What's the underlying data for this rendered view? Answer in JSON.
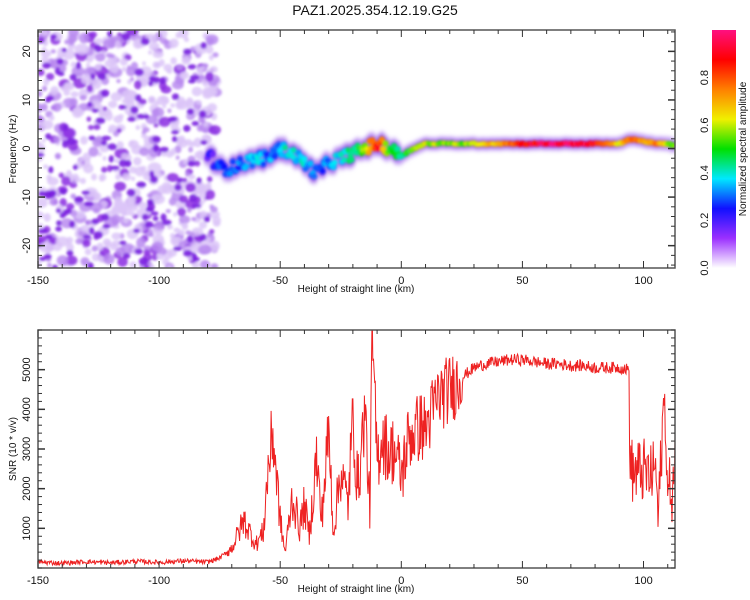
{
  "title": "PAZ1.2025.354.12.19.G25",
  "chart_data": [
    {
      "type": "heatmap",
      "title": "PAZ1.2025.354.12.19.G25",
      "xlabel": "Height of straight line (km)",
      "ylabel": "Frequency (Hz)",
      "xlim": [
        -150,
        113
      ],
      "ylim": [
        -24.6,
        24.4
      ],
      "xticks": [
        -150,
        -100,
        -50,
        0,
        50,
        100
      ],
      "xtick_labels": [
        "-150",
        "-100",
        "-50",
        "0",
        "50",
        "100"
      ],
      "yticks": [
        -20,
        -10,
        0,
        10,
        20
      ],
      "ytick_labels": [
        "-20",
        "-10",
        "0",
        "10",
        "20"
      ],
      "colorbar": {
        "label": "Normalized spectral amplitude",
        "range": [
          0,
          1
        ],
        "ticks": [
          0.0,
          0.2,
          0.4,
          0.6,
          0.8
        ],
        "tick_labels": [
          "0.0",
          "0.2",
          "0.4",
          "0.6",
          "0.8"
        ],
        "colormap": [
          "#ffffff",
          "#9b30ff",
          "#1010ff",
          "#00e8ff",
          "#00e000",
          "#f0f000",
          "#ff8000",
          "#ff0000",
          "#ff1080"
        ]
      },
      "signal_ridge": {
        "x": [
          -80,
          -75,
          -70,
          -65,
          -60,
          -55,
          -50,
          -45,
          -40,
          -35,
          -30,
          -25,
          -20,
          -15,
          -10,
          -5,
          0,
          5,
          10,
          20,
          30,
          40,
          50,
          60,
          70,
          80,
          90,
          95,
          100,
          105,
          110,
          113
        ],
        "y": [
          -1,
          -4,
          -4,
          -3,
          -2,
          -2,
          0,
          -1,
          -3,
          -5,
          -3,
          -2,
          -1,
          0,
          1,
          0,
          -1.5,
          0,
          1,
          1,
          1,
          1,
          1,
          1,
          1,
          1,
          1,
          2,
          1.5,
          1,
          1,
          0.5
        ],
        "amplitude": [
          0.2,
          0.25,
          0.3,
          0.3,
          0.35,
          0.3,
          0.35,
          0.4,
          0.35,
          0.3,
          0.3,
          0.4,
          0.45,
          0.55,
          0.9,
          0.5,
          0.45,
          0.55,
          0.6,
          0.55,
          0.6,
          0.7,
          0.85,
          0.95,
          0.95,
          0.9,
          0.6,
          0.8,
          0.7,
          0.75,
          0.6,
          0.5
        ]
      },
      "noise_region_x": [
        -150,
        -80
      ]
    },
    {
      "type": "line",
      "xlabel": "Height of straight line (km)",
      "ylabel": "SNR (10 * v/v)",
      "xlim": [
        -150,
        113
      ],
      "ylim": [
        0,
        6000
      ],
      "xticks": [
        -150,
        -100,
        -50,
        0,
        50,
        100
      ],
      "xtick_labels": [
        "-150",
        "-100",
        "-50",
        "0",
        "50",
        "100"
      ],
      "yticks": [
        1000,
        2000,
        3000,
        4000,
        5000
      ],
      "ytick_labels": [
        "1000",
        "2000",
        "3000",
        "4000",
        "5000"
      ],
      "color": "#ee2222",
      "series": [
        {
          "name": "SNR",
          "x": [
            -150,
            -140,
            -130,
            -120,
            -110,
            -100,
            -90,
            -80,
            -75,
            -70,
            -65,
            -60,
            -57,
            -55,
            -53,
            -50,
            -48,
            -45,
            -42,
            -40,
            -38,
            -35,
            -33,
            -30,
            -28,
            -25,
            -22,
            -20,
            -18,
            -15,
            -13,
            -12,
            -10,
            -8,
            -5,
            -3,
            0,
            3,
            5,
            8,
            10,
            15,
            20,
            25,
            30,
            35,
            40,
            45,
            50,
            55,
            60,
            65,
            70,
            75,
            80,
            85,
            90,
            94,
            94.5,
            96,
            100,
            103,
            105,
            106,
            107,
            108,
            109,
            110,
            111,
            112,
            113
          ],
          "y": [
            150,
            120,
            160,
            130,
            170,
            140,
            180,
            150,
            250,
            500,
            1200,
            600,
            900,
            2500,
            3400,
            1200,
            400,
            1800,
            1000,
            1600,
            800,
            2800,
            1200,
            3400,
            900,
            2500,
            1600,
            3800,
            2000,
            4000,
            1500,
            5800,
            2700,
            3300,
            2900,
            3000,
            2300,
            3300,
            3400,
            3600,
            3500,
            4300,
            4500,
            4800,
            5050,
            5150,
            5200,
            5250,
            5250,
            5200,
            5150,
            5150,
            5100,
            5100,
            5050,
            5050,
            5050,
            5000,
            2500,
            2400,
            2450,
            2300,
            2600,
            1200,
            2500,
            3800,
            4100,
            1700,
            2200,
            1600,
            3300
          ]
        }
      ]
    }
  ]
}
